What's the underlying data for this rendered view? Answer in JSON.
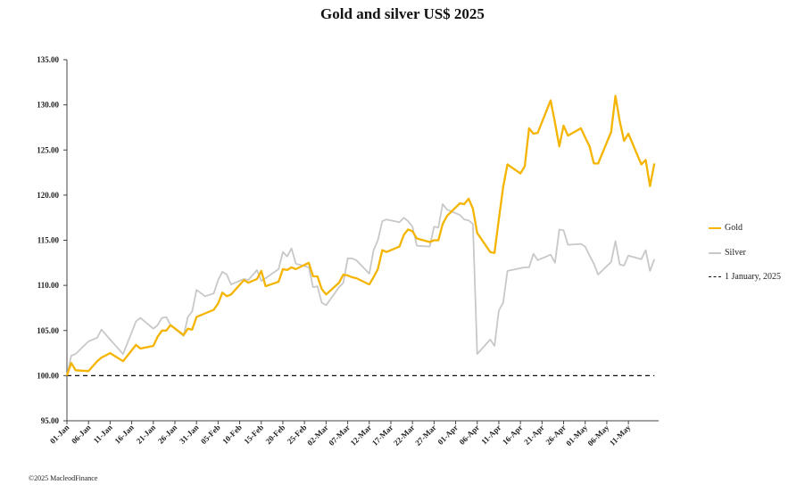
{
  "chart_data": {
    "type": "line",
    "title": "Gold and silver  US$ 2025",
    "xlabel": "",
    "ylabel": "",
    "ylim": [
      95,
      135
    ],
    "yticks": [
      "95.00",
      "100.00",
      "105.00",
      "110.00",
      "115.00",
      "120.00",
      "125.00",
      "130.00",
      "135.00"
    ],
    "x_tick_labels": [
      "01-Jan",
      "06-Jan",
      "11-Jan",
      "16-Jan",
      "21-Jan",
      "26-Jan",
      "31-Jan",
      "05-Feb",
      "10-Feb",
      "15-Feb",
      "20-Feb",
      "25-Feb",
      "02-Mar",
      "07-Mar",
      "12-Mar",
      "17-Mar",
      "22-Mar",
      "27-Mar",
      "01-Apr",
      "06-Apr",
      "11-Apr",
      "16-Apr",
      "21-Apr",
      "26-Apr",
      "01-May",
      "06-May",
      "11-May"
    ],
    "x_range_days": [
      0,
      137
    ],
    "legend_position": "right",
    "series": [
      {
        "name": "Gold",
        "color": "#f4b400",
        "days": [
          0,
          1,
          2,
          5,
          7,
          8,
          10,
          13,
          16,
          17,
          20,
          21,
          22,
          23,
          24,
          27,
          28,
          29,
          30,
          32,
          34,
          35,
          36,
          37,
          38,
          41,
          42,
          44,
          45,
          46,
          49,
          50,
          51,
          52,
          53,
          56,
          57,
          58,
          59,
          60,
          63,
          64,
          65,
          66,
          67,
          70,
          71,
          72,
          73,
          74,
          77,
          78,
          79,
          80,
          81,
          84,
          85,
          86,
          87,
          88,
          91,
          92,
          93,
          94,
          95,
          98,
          99,
          100,
          101,
          102,
          105,
          106,
          107,
          108,
          109,
          112,
          113,
          114,
          115,
          116,
          119,
          120,
          121,
          122,
          123,
          126,
          127,
          128,
          129,
          130,
          133,
          134,
          135,
          136
        ],
        "values": [
          100.0,
          101.4,
          100.6,
          100.5,
          101.6,
          102.0,
          102.5,
          101.6,
          103.4,
          103.0,
          103.3,
          104.3,
          105.0,
          105.0,
          105.6,
          104.5,
          105.2,
          105.1,
          106.5,
          106.9,
          107.3,
          108.0,
          109.2,
          108.8,
          109.0,
          110.6,
          110.3,
          110.7,
          111.6,
          109.9,
          110.4,
          111.8,
          111.7,
          112.0,
          111.8,
          112.5,
          111.0,
          111.0,
          109.6,
          109.0,
          110.3,
          111.2,
          111.1,
          110.9,
          110.8,
          110.1,
          110.9,
          111.8,
          113.9,
          113.7,
          114.3,
          115.6,
          116.2,
          116.0,
          115.2,
          114.8,
          115.0,
          115.0,
          116.8,
          117.7,
          119.1,
          119.0,
          119.6,
          118.5,
          115.8,
          113.7,
          113.6,
          117.3,
          120.9,
          123.4,
          122.4,
          123.2,
          127.4,
          126.8,
          126.9,
          130.5,
          128.0,
          125.4,
          127.7,
          126.6,
          127.4,
          126.4,
          125.4,
          123.5,
          123.5,
          127.0,
          131.0,
          128.2,
          126.0,
          126.8,
          123.4,
          123.9,
          121.0,
          123.5
        ]
      },
      {
        "name": "Silver",
        "color": "#c8c8c8",
        "days": [
          0,
          1,
          2,
          5,
          7,
          8,
          10,
          13,
          16,
          17,
          20,
          21,
          22,
          23,
          24,
          27,
          28,
          29,
          30,
          32,
          34,
          35,
          36,
          37,
          38,
          41,
          42,
          44,
          45,
          46,
          49,
          50,
          51,
          52,
          53,
          56,
          57,
          58,
          59,
          60,
          63,
          64,
          65,
          66,
          67,
          70,
          71,
          72,
          73,
          74,
          77,
          78,
          79,
          80,
          81,
          84,
          85,
          86,
          87,
          88,
          91,
          92,
          93,
          94,
          95,
          98,
          99,
          100,
          101,
          102,
          105,
          106,
          107,
          108,
          109,
          112,
          113,
          114,
          115,
          116,
          119,
          120,
          121,
          122,
          123,
          126,
          127,
          128,
          129,
          130,
          133,
          134,
          135,
          136
        ],
        "values": [
          100.0,
          102.2,
          102.4,
          103.8,
          104.2,
          105.1,
          104.0,
          102.4,
          106.0,
          106.4,
          105.2,
          105.6,
          106.4,
          106.5,
          105.6,
          104.4,
          106.5,
          107.1,
          109.5,
          108.8,
          109.1,
          110.6,
          111.5,
          111.2,
          110.1,
          110.7,
          110.6,
          111.7,
          110.5,
          110.8,
          111.8,
          113.7,
          113.2,
          114.1,
          112.4,
          112.0,
          109.8,
          109.9,
          108.1,
          107.8,
          109.8,
          110.3,
          113.0,
          113.0,
          112.8,
          111.3,
          113.9,
          115.0,
          117.1,
          117.3,
          117.0,
          117.5,
          117.1,
          116.5,
          114.4,
          114.3,
          116.5,
          116.4,
          119.0,
          118.4,
          117.8,
          117.3,
          117.2,
          116.8,
          102.4,
          104.0,
          103.3,
          107.2,
          108.1,
          111.6,
          111.9,
          112.0,
          112.0,
          113.5,
          112.8,
          113.4,
          112.5,
          116.2,
          116.1,
          114.5,
          114.6,
          114.3,
          113.3,
          112.4,
          111.2,
          112.6,
          114.9,
          112.3,
          112.2,
          113.3,
          112.9,
          113.9,
          111.6,
          112.9
        ]
      },
      {
        "name": "1 January, 2025",
        "color": "#111111",
        "style": "dashed",
        "days": [
          0,
          136
        ],
        "values": [
          100,
          100
        ]
      }
    ],
    "credit": "©2025 MacleodFinance"
  }
}
